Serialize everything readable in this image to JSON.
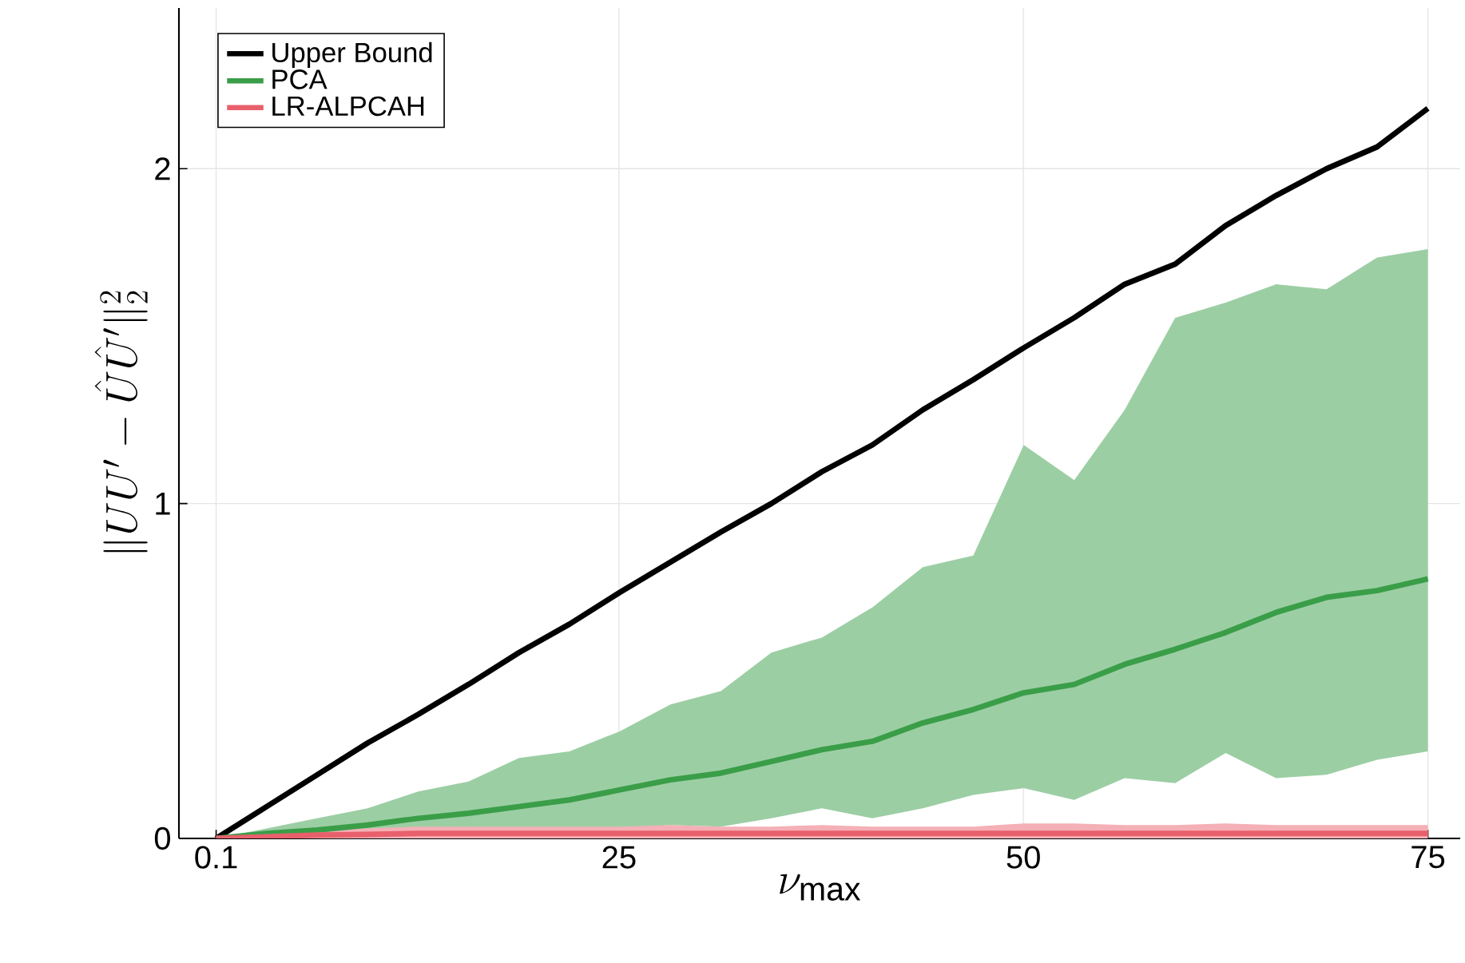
{
  "chart_data": {
    "type": "line",
    "xlabel": "\\nu_{\\max}",
    "ylabel": "\\|UU' - \\hat{U}\\hat{U}'\\|_2^2",
    "x": [
      0.1,
      3.22,
      6.34,
      9.46,
      12.58,
      15.7,
      18.82,
      21.94,
      25.06,
      28.18,
      31.3,
      34.42,
      37.54,
      40.66,
      43.78,
      46.9,
      50.02,
      53.14,
      56.26,
      59.38,
      62.5,
      65.62,
      68.74,
      71.86,
      75
    ],
    "series": [
      {
        "name": "Upper Bound",
        "color": "#000000",
        "values": [
          0,
          0.095,
          0.19,
          0.285,
          0.37,
          0.46,
          0.555,
          0.64,
          0.735,
          0.825,
          0.915,
          1.0,
          1.095,
          1.175,
          1.28,
          1.37,
          1.465,
          1.555,
          1.655,
          1.715,
          1.83,
          1.92,
          2.0,
          2.065,
          2.18
        ]
      },
      {
        "name": "PCA",
        "color": "#3a9e48",
        "values": [
          0,
          0.015,
          0.025,
          0.04,
          0.06,
          0.075,
          0.095,
          0.115,
          0.145,
          0.175,
          0.195,
          0.23,
          0.265,
          0.29,
          0.345,
          0.385,
          0.435,
          0.46,
          0.52,
          0.565,
          0.615,
          0.675,
          0.72,
          0.74,
          0.775
        ],
        "lower": [
          0,
          0.005,
          0.01,
          0.015,
          0.02,
          0.025,
          0.025,
          0.03,
          0.03,
          0.04,
          0.035,
          0.06,
          0.09,
          0.06,
          0.09,
          0.13,
          0.15,
          0.115,
          0.18,
          0.165,
          0.255,
          0.18,
          0.19,
          0.235,
          0.26
        ],
        "upper": [
          0,
          0.03,
          0.06,
          0.09,
          0.14,
          0.17,
          0.24,
          0.26,
          0.32,
          0.4,
          0.44,
          0.555,
          0.6,
          0.69,
          0.81,
          0.845,
          1.175,
          1.07,
          1.28,
          1.555,
          1.6,
          1.655,
          1.64,
          1.735,
          1.76
        ]
      },
      {
        "name": "LR-ALPCAH",
        "color": "#e8606c",
        "values": [
          0,
          0.005,
          0.01,
          0.012,
          0.015,
          0.015,
          0.015,
          0.015,
          0.015,
          0.015,
          0.015,
          0.015,
          0.015,
          0.015,
          0.015,
          0.015,
          0.015,
          0.015,
          0.015,
          0.015,
          0.015,
          0.015,
          0.015,
          0.015,
          0.015
        ],
        "lower": [
          0,
          0,
          0,
          0,
          0,
          0,
          0,
          0,
          0,
          0,
          0,
          0,
          0,
          0,
          0,
          0,
          0,
          0,
          0,
          0,
          0,
          0,
          0,
          0,
          0
        ],
        "upper": [
          0,
          0.015,
          0.025,
          0.03,
          0.035,
          0.035,
          0.035,
          0.035,
          0.035,
          0.04,
          0.035,
          0.035,
          0.04,
          0.035,
          0.035,
          0.035,
          0.045,
          0.045,
          0.04,
          0.04,
          0.045,
          0.04,
          0.04,
          0.04,
          0.04
        ]
      }
    ],
    "xlim": [
      -2.2,
      77
    ],
    "ylim": [
      0,
      2.48
    ],
    "xticks": [
      0.1,
      25,
      50,
      75
    ],
    "yticks": [
      0,
      1,
      2
    ],
    "grid": true,
    "legend": "top left",
    "marker": "none",
    "line_style": "solid"
  }
}
